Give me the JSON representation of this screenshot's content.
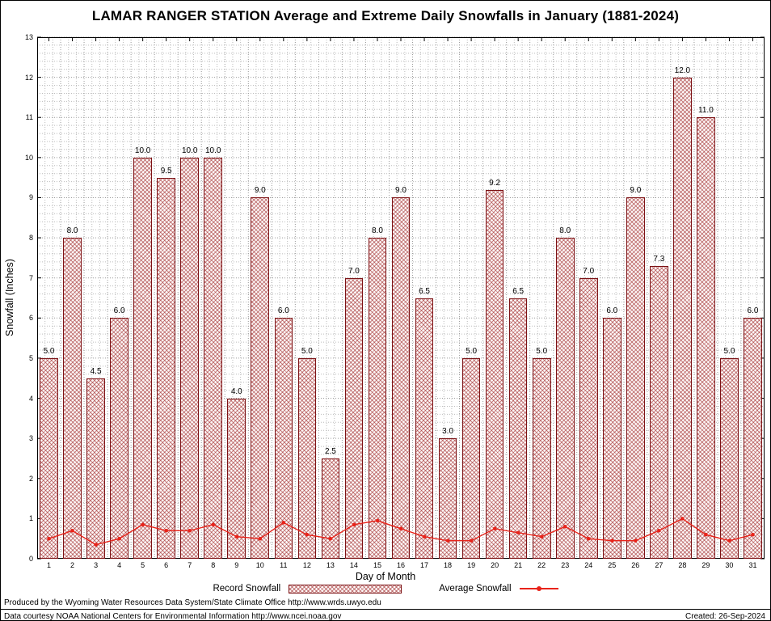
{
  "title": "LAMAR RANGER STATION Average and Extreme Daily Snowfalls in January (1881-2024)",
  "chart_data": {
    "type": "bar",
    "categories": [
      1,
      2,
      3,
      4,
      5,
      6,
      7,
      8,
      9,
      10,
      11,
      12,
      13,
      14,
      15,
      16,
      17,
      18,
      19,
      20,
      21,
      22,
      23,
      24,
      25,
      26,
      27,
      28,
      29,
      30,
      31
    ],
    "series": [
      {
        "name": "Record Snowfall",
        "type": "bar",
        "values": [
          5.0,
          8.0,
          4.5,
          6.0,
          10.0,
          9.5,
          10.0,
          10.0,
          4.0,
          9.0,
          6.0,
          5.0,
          2.5,
          7.0,
          8.0,
          9.0,
          6.5,
          3.0,
          5.0,
          9.2,
          6.5,
          5.0,
          8.0,
          7.0,
          6.0,
          9.0,
          7.3,
          12.0,
          11.0,
          5.0,
          6.0
        ]
      },
      {
        "name": "Average Snowfall",
        "type": "line",
        "values": [
          0.5,
          0.7,
          0.35,
          0.5,
          0.85,
          0.7,
          0.7,
          0.85,
          0.55,
          0.5,
          0.9,
          0.6,
          0.5,
          0.85,
          0.95,
          0.75,
          0.55,
          0.45,
          0.45,
          0.75,
          0.65,
          0.55,
          0.8,
          0.5,
          0.45,
          0.45,
          0.7,
          1.0,
          0.6,
          0.45,
          0.6
        ]
      }
    ],
    "title": "LAMAR RANGER STATION Average and Extreme Daily Snowfalls in January (1881-2024)",
    "xlabel": "Day of Month",
    "ylabel": "Snowfall (Inches)",
    "ylim": [
      0,
      13
    ],
    "y_tick_step": 1,
    "grid": true,
    "legend_position": "bottom"
  },
  "colors": {
    "bar_border": "#7c1215",
    "bar_hatch": "#9e2828",
    "average_line": "#e8231a",
    "grid_minor": "#bcbcbc",
    "grid_major": "#9a9a9a"
  },
  "footer": {
    "line1": "Produced by the Wyoming Water Resources Data System/State Climate Office http://www.wrds.uwyo.edu",
    "line2": "Data courtesy NOAA National Centers for Environmental Information http://www.ncei.noaa.gov",
    "created": "Created: 26-Sep-2024"
  }
}
